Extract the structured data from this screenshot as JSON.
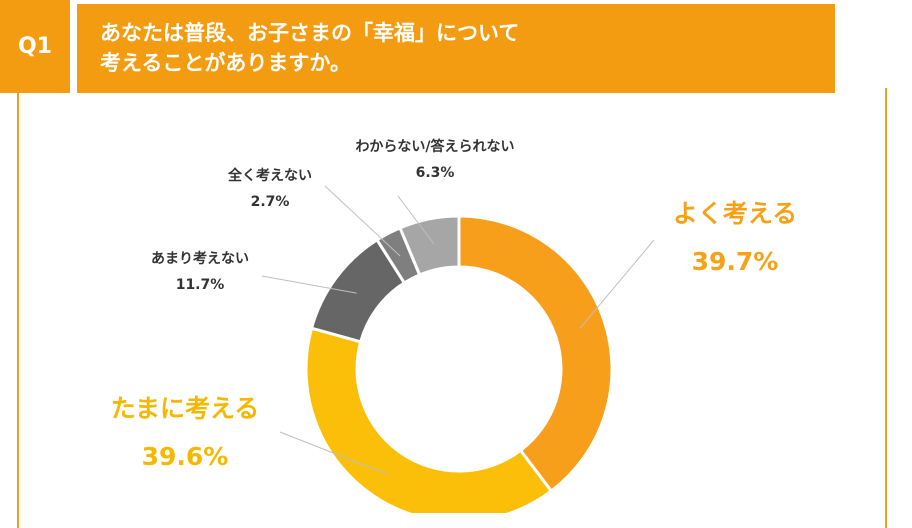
{
  "question": {
    "badge": "Q1",
    "line1": "あなたは普段、お子さまの「幸福」について",
    "line2": "考えることがありますか。"
  },
  "colors": {
    "header_bg": "#f39c12",
    "よく考える": "#f79e1b",
    "たまに考える": "#fbbf09",
    "あまり考えない": "#666666",
    "全く考えない": "#7f7f7f",
    "わからない/答えられない": "#a6a6a6"
  },
  "chart_data": {
    "type": "pie",
    "donut": true,
    "series": [
      {
        "label": "よく考える",
        "value": 39.7,
        "display": "39.7%"
      },
      {
        "label": "たまに考える",
        "value": 39.6,
        "display": "39.6%"
      },
      {
        "label": "あまり考えない",
        "value": 11.7,
        "display": "11.7%"
      },
      {
        "label": "全く考えない",
        "value": 2.7,
        "display": "2.7%"
      },
      {
        "label": "わからない/答えられない",
        "value": 6.3,
        "display": "6.3%"
      }
    ]
  }
}
